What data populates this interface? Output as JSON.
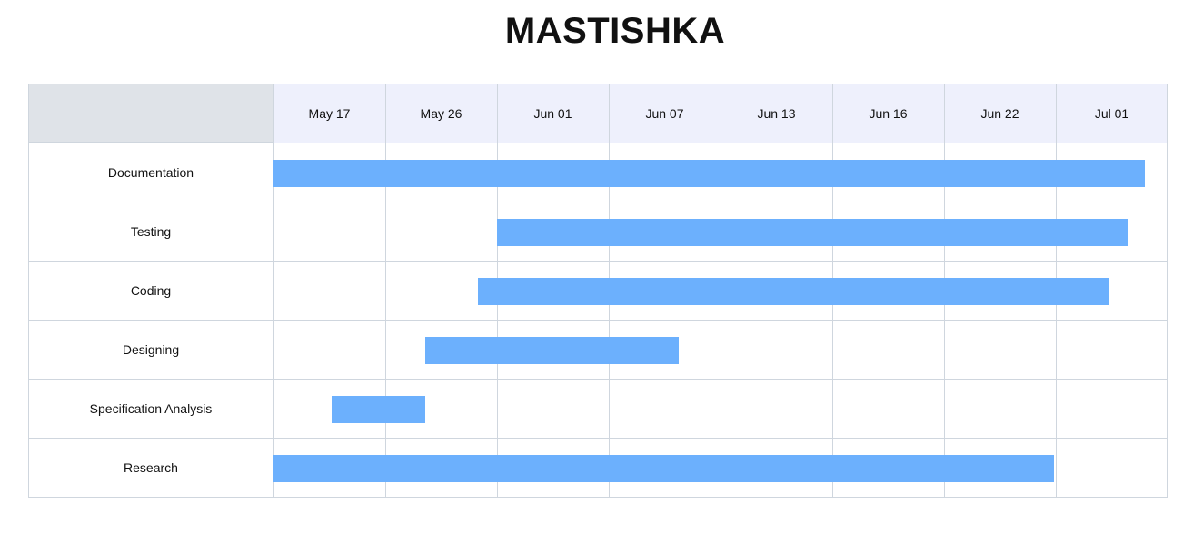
{
  "chart_data": {
    "type": "gantt",
    "title": "MASTISHKA",
    "columns": [
      "May 17",
      "May 26",
      "Jun 01",
      "Jun 07",
      "Jun 13",
      "Jun 16",
      "Jun 22",
      "Jul 01"
    ],
    "tasks": [
      {
        "name": "Documentation",
        "start_col": 0.0,
        "end_col": 7.8
      },
      {
        "name": "Testing",
        "start_col": 2.0,
        "end_col": 7.65
      },
      {
        "name": "Coding",
        "start_col": 1.83,
        "end_col": 7.48
      },
      {
        "name": "Designing",
        "start_col": 1.36,
        "end_col": 3.63
      },
      {
        "name": "Specification Analysis",
        "start_col": 0.52,
        "end_col": 1.36
      },
      {
        "name": "Research",
        "start_col": 0.0,
        "end_col": 6.98
      }
    ],
    "bar_color": "#6cb0fd",
    "header_color": "#eef0fc",
    "grid_color": "#cfd6de"
  }
}
